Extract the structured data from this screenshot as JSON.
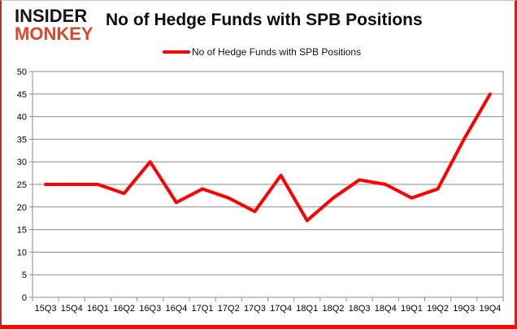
{
  "logo": {
    "line1": "INSIDER",
    "line2": "MONKEY"
  },
  "title": "No of Hedge Funds with SPB Positions",
  "legend": {
    "label": "No of Hedge Funds with SPB Positions"
  },
  "colors": {
    "line": "#ff0000",
    "logo_black": "#151515",
    "logo_accent": "#d9472b",
    "grid": "#8c8c8c",
    "axis_text": "#000000"
  },
  "chart_data": {
    "type": "line",
    "title": "No of Hedge Funds with SPB Positions",
    "categories": [
      "15Q3",
      "15Q4",
      "16Q1",
      "16Q2",
      "16Q3",
      "16Q4",
      "17Q1",
      "17Q2",
      "17Q3",
      "17Q4",
      "18Q1",
      "18Q2",
      "18Q3",
      "18Q4",
      "19Q1",
      "19Q2",
      "19Q3",
      "19Q4"
    ],
    "series": [
      {
        "name": "No of Hedge Funds with SPB Positions",
        "values": [
          25,
          25,
          25,
          23,
          30,
          21,
          24,
          22,
          19,
          27,
          17,
          22,
          26,
          25,
          22,
          24,
          35,
          45
        ]
      }
    ],
    "xlabel": "",
    "ylabel": "",
    "ylim": [
      0,
      50
    ],
    "ytick_step": 5,
    "y_ticks": [
      0,
      5,
      10,
      15,
      20,
      25,
      30,
      35,
      40,
      45,
      50
    ],
    "grid": true,
    "legend_position": "top-center"
  }
}
